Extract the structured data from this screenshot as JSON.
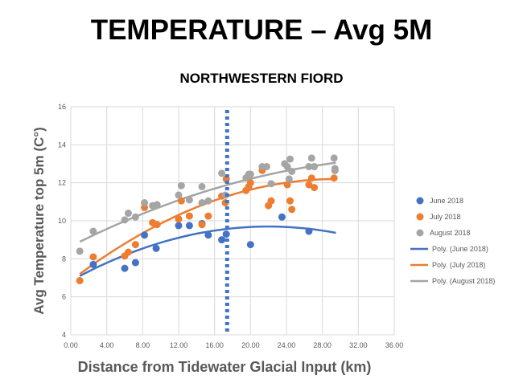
{
  "chart_data": {
    "type": "scatter",
    "title": "TEMPERATURE – Avg 5M",
    "subtitle": "NORTHWESTERN FIORD",
    "xlabel": "Distance from Tidewater Glacial Input (km)",
    "ylabel": "Avg Temperature top 5m (C°)",
    "xlim": [
      0,
      36
    ],
    "ylim": [
      4,
      16
    ],
    "xticks": [
      "0.00",
      "4.00",
      "8.00",
      "12.00",
      "16.00",
      "20.00",
      "24.00",
      "28.00",
      "32.00",
      "36.00"
    ],
    "yticks": [
      "4",
      "6",
      "8",
      "10",
      "12",
      "14",
      "16"
    ],
    "grid": true,
    "legend_position": "right",
    "vline_x": 17.4,
    "series": [
      {
        "name": "June 2018",
        "color": "#4472C4",
        "points": [
          [
            2.5,
            7.7
          ],
          [
            6,
            7.5
          ],
          [
            7.2,
            7.8
          ],
          [
            8.2,
            9.25
          ],
          [
            9.5,
            8.55
          ],
          [
            12,
            9.75
          ],
          [
            13.2,
            9.75
          ],
          [
            14.6,
            9.85
          ],
          [
            15.3,
            9.25
          ],
          [
            16.8,
            9.0
          ],
          [
            17.3,
            9.3
          ],
          [
            20,
            8.75
          ],
          [
            23.5,
            10.2
          ],
          [
            26.5,
            9.45
          ]
        ]
      },
      {
        "name": "July 2018",
        "color": "#ED7D31",
        "points": [
          [
            1,
            6.85
          ],
          [
            2.5,
            8.1
          ],
          [
            6,
            8.15
          ],
          [
            6.4,
            8.35
          ],
          [
            7.2,
            8.75
          ],
          [
            8.2,
            10.7
          ],
          [
            9.1,
            9.9
          ],
          [
            9.6,
            9.8
          ],
          [
            12,
            10.1
          ],
          [
            12.3,
            11.05
          ],
          [
            13.2,
            10.25
          ],
          [
            14.6,
            9.8
          ],
          [
            15.3,
            10.25
          ],
          [
            16.8,
            11.3
          ],
          [
            17.2,
            10.95
          ],
          [
            17.3,
            12.2
          ],
          [
            19.5,
            11.6
          ],
          [
            19.8,
            11.8
          ],
          [
            20,
            12.0
          ],
          [
            21.3,
            12.65
          ],
          [
            22,
            10.8
          ],
          [
            22.3,
            11.05
          ],
          [
            24.1,
            11.9
          ],
          [
            24.4,
            11.05
          ],
          [
            24.6,
            10.6
          ],
          [
            26.5,
            11.9
          ],
          [
            26.8,
            12.25
          ],
          [
            27.1,
            11.75
          ],
          [
            29.3,
            12.25
          ],
          [
            29.4,
            12.65
          ]
        ]
      },
      {
        "name": "August 2018",
        "color": "#A5A5A5",
        "points": [
          [
            1,
            8.4
          ],
          [
            2.5,
            9.45
          ],
          [
            6,
            10.05
          ],
          [
            6.4,
            10.4
          ],
          [
            7.2,
            10.2
          ],
          [
            8.2,
            10.95
          ],
          [
            9.1,
            10.8
          ],
          [
            9.6,
            10.85
          ],
          [
            12,
            11.35
          ],
          [
            12.3,
            11.85
          ],
          [
            13.2,
            11.1
          ],
          [
            14.6,
            11.8
          ],
          [
            14.6,
            10.95
          ],
          [
            15.3,
            11.05
          ],
          [
            16.8,
            12.5
          ],
          [
            17.2,
            11.35
          ],
          [
            19.5,
            12.25
          ],
          [
            19.8,
            12.45
          ],
          [
            20,
            12.45
          ],
          [
            21.3,
            12.85
          ],
          [
            21.8,
            12.85
          ],
          [
            22.3,
            11.95
          ],
          [
            23.8,
            13.0
          ],
          [
            24.1,
            12.85
          ],
          [
            24.4,
            13.25
          ],
          [
            24.6,
            12.6
          ],
          [
            24.3,
            12.2
          ],
          [
            26.5,
            12.85
          ],
          [
            26.8,
            13.3
          ],
          [
            27.1,
            12.85
          ],
          [
            29.3,
            13.3
          ],
          [
            29.4,
            12.65
          ],
          [
            29.4,
            12.75
          ]
        ]
      }
    ],
    "trendlines": [
      {
        "name": "Poly. (June 2018)",
        "color": "#4472C4",
        "coef": [
          6.844,
          0.2596,
          -0.0059
        ],
        "x_range": [
          1,
          29.5
        ]
      },
      {
        "name": "Poly. (July 2018)",
        "color": "#ED7D31",
        "coef": [
          6.844,
          0.3623,
          -0.006127
        ],
        "x_range": [
          1,
          29.5
        ]
      },
      {
        "name": "Poly. (August 2018)",
        "color": "#A5A5A5",
        "coef": [
          8.666,
          0.2375,
          -0.003012
        ],
        "x_range": [
          1,
          29.5
        ]
      }
    ]
  }
}
